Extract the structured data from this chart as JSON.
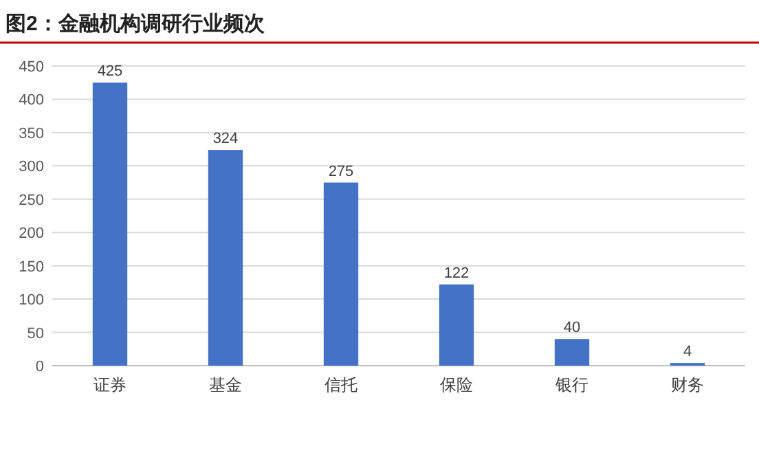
{
  "chart_data": {
    "type": "bar",
    "title": "图2：金融机构调研行业频次",
    "categories": [
      "证券",
      "基金",
      "信托",
      "保险",
      "银行",
      "财务"
    ],
    "values": [
      425,
      324,
      275,
      122,
      40,
      4
    ],
    "color": "#4472c4",
    "ylim": [
      0,
      450
    ],
    "yticks": [
      0,
      50,
      100,
      150,
      200,
      250,
      300,
      350,
      400,
      450
    ],
    "grid": "y",
    "data_labels": true
  }
}
